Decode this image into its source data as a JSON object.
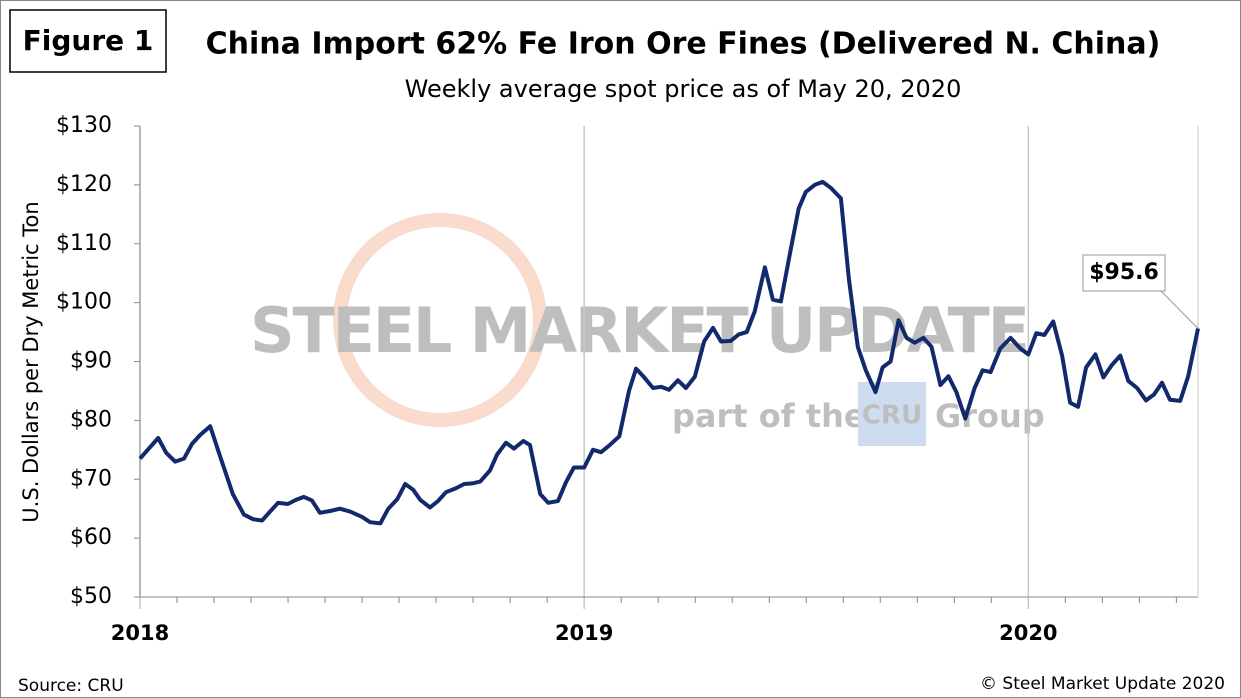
{
  "figure_label": "Figure 1",
  "source": "Source: CRU",
  "copyright": "© Steel Market Update 2020",
  "watermark": {
    "brand": "STEEL MARKET UPDATE",
    "tagline_start": "part of the",
    "logo": "CRU",
    "tagline_end": "Group"
  },
  "chart_data": {
    "type": "line",
    "title": "China Import 62% Fe Iron Ore Fines (Delivered N. China)",
    "subtitle": "Weekly average spot price as of May 20, 2020",
    "y_label": "U.S. Dollars per Dry Metric Ton",
    "annotation": "$95.6",
    "xlim": [
      2018,
      2020.382
    ],
    "xticks": [
      2018,
      2019,
      2020
    ],
    "ylim": [
      50,
      130
    ],
    "yticks": [
      {
        "value": 50,
        "label": "$50"
      },
      {
        "value": 60,
        "label": "$60"
      },
      {
        "value": 70,
        "label": "$70"
      },
      {
        "value": 80,
        "label": "$80"
      },
      {
        "value": 90,
        "label": "$90"
      },
      {
        "value": 100,
        "label": "$100"
      },
      {
        "value": 110,
        "label": "$110"
      },
      {
        "value": 120,
        "label": "$120"
      },
      {
        "value": 130,
        "label": "$130"
      }
    ],
    "grid": true,
    "series": [
      {
        "color": "#12296b",
        "x": [
          2018.0,
          2018.041,
          2018.059,
          2018.079,
          2018.099,
          2018.117,
          2018.135,
          2018.158,
          2018.18,
          2018.209,
          2018.234,
          2018.255,
          2018.275,
          2018.293,
          2018.311,
          2018.333,
          2018.351,
          2018.369,
          2018.387,
          2018.405,
          2018.428,
          2018.45,
          2018.473,
          2018.5,
          2018.518,
          2018.541,
          2018.559,
          2018.579,
          2018.597,
          2018.615,
          2018.631,
          2018.653,
          2018.671,
          2018.689,
          2018.712,
          2018.73,
          2018.748,
          2018.766,
          2018.788,
          2018.804,
          2018.824,
          2018.842,
          2018.863,
          2018.878,
          2018.901,
          2018.919,
          2018.941,
          2018.959,
          2018.977,
          2019.0,
          2019.02,
          2019.038,
          2019.056,
          2019.079,
          2019.101,
          2019.117,
          2019.133,
          2019.155,
          2019.173,
          2019.191,
          2019.211,
          2019.229,
          2019.249,
          2019.27,
          2019.29,
          2019.308,
          2019.33,
          2019.348,
          2019.366,
          2019.384,
          2019.407,
          2019.425,
          2019.443,
          2019.465,
          2019.483,
          2019.499,
          2019.519,
          2019.537,
          2019.555,
          2019.578,
          2019.596,
          2019.616,
          2019.634,
          2019.656,
          2019.672,
          2019.69,
          2019.708,
          2019.726,
          2019.744,
          2019.764,
          2019.782,
          2019.802,
          2019.82,
          2019.838,
          2019.858,
          2019.879,
          2019.897,
          2019.915,
          2019.937,
          2019.96,
          2019.982,
          2020.0,
          2020.018,
          2020.036,
          2020.056,
          2020.076,
          2020.094,
          2020.112,
          2020.13,
          2020.151,
          2020.169,
          2020.187,
          2020.207,
          2020.225,
          2020.245,
          2020.265,
          2020.283,
          2020.301,
          2020.319,
          2020.342,
          2020.36,
          2020.382
        ],
        "values": [
          73.5,
          77,
          74.5,
          73,
          73.5,
          76,
          77.5,
          79,
          74,
          67.5,
          64,
          63.2,
          63,
          64.5,
          66,
          65.8,
          66.5,
          67,
          66.4,
          64.3,
          64.6,
          65,
          64.5,
          63.6,
          62.7,
          62.5,
          65,
          66.6,
          69.2,
          68.2,
          66.5,
          65.2,
          66.3,
          67.8,
          68.5,
          69.2,
          69.3,
          69.6,
          71.5,
          74.2,
          76.2,
          75.2,
          76.5,
          75.8,
          67.5,
          66,
          66.3,
          69.5,
          72,
          72,
          75,
          74.6,
          75.7,
          77.3,
          85,
          88.8,
          87.5,
          85.5,
          85.7,
          85.2,
          86.8,
          85.5,
          87.4,
          93.4,
          95.7,
          93.4,
          93.5,
          94.6,
          95,
          98.5,
          106,
          100.5,
          100.2,
          109,
          116,
          118.8,
          120,
          120.5,
          119.5,
          117.7,
          104,
          92.5,
          88.5,
          84.8,
          89,
          90,
          97,
          94,
          93.2,
          94,
          92.5,
          86,
          87.5,
          84.8,
          80.3,
          85.5,
          88.5,
          88.2,
          92.2,
          94,
          92.2,
          91.2,
          94.8,
          94.5,
          96.8,
          91,
          83,
          82.3,
          89,
          91.2,
          87.3,
          89.3,
          91,
          86.7,
          85.5,
          83.4,
          84.4,
          86.4,
          83.5,
          83.3,
          87.5,
          95.6
        ]
      }
    ]
  }
}
